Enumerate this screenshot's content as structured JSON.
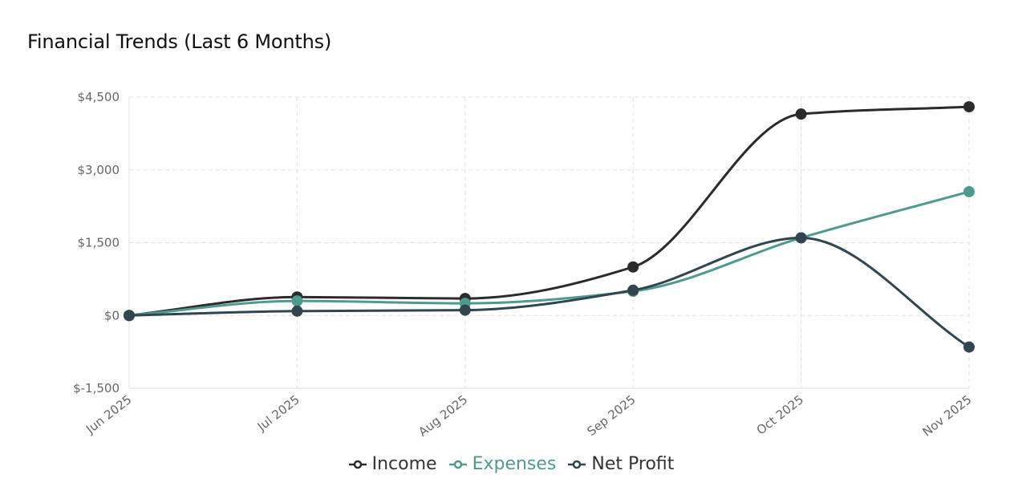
{
  "chart": {
    "title": "Financial Trends (Last 6 Months)"
  },
  "chart_data": {
    "type": "line",
    "title": "Financial Trends (Last 6 Months)",
    "xlabel": "",
    "ylabel": "",
    "categories": [
      "Jun 2025",
      "Jul 2025",
      "Aug 2025",
      "Sep 2025",
      "Oct 2025",
      "Nov 2025"
    ],
    "ylim": [
      -1500,
      4500
    ],
    "yticks": [
      -1500,
      0,
      1500,
      3000,
      4500
    ],
    "ytick_labels": [
      "$-1,500",
      "$0",
      "$1,500",
      "$3,000",
      "$4,500"
    ],
    "grid": true,
    "legend_position": "bottom",
    "series": [
      {
        "name": "Income",
        "color": "#2b2b2b",
        "values": [
          0,
          380,
          350,
          1000,
          4150,
          4300
        ]
      },
      {
        "name": "Expenses",
        "color": "#4f9a8e",
        "values": [
          0,
          300,
          250,
          500,
          1600,
          2550
        ]
      },
      {
        "name": "Net Profit",
        "color": "#2f4550",
        "values": [
          0,
          90,
          110,
          520,
          1600,
          -650
        ]
      }
    ]
  }
}
